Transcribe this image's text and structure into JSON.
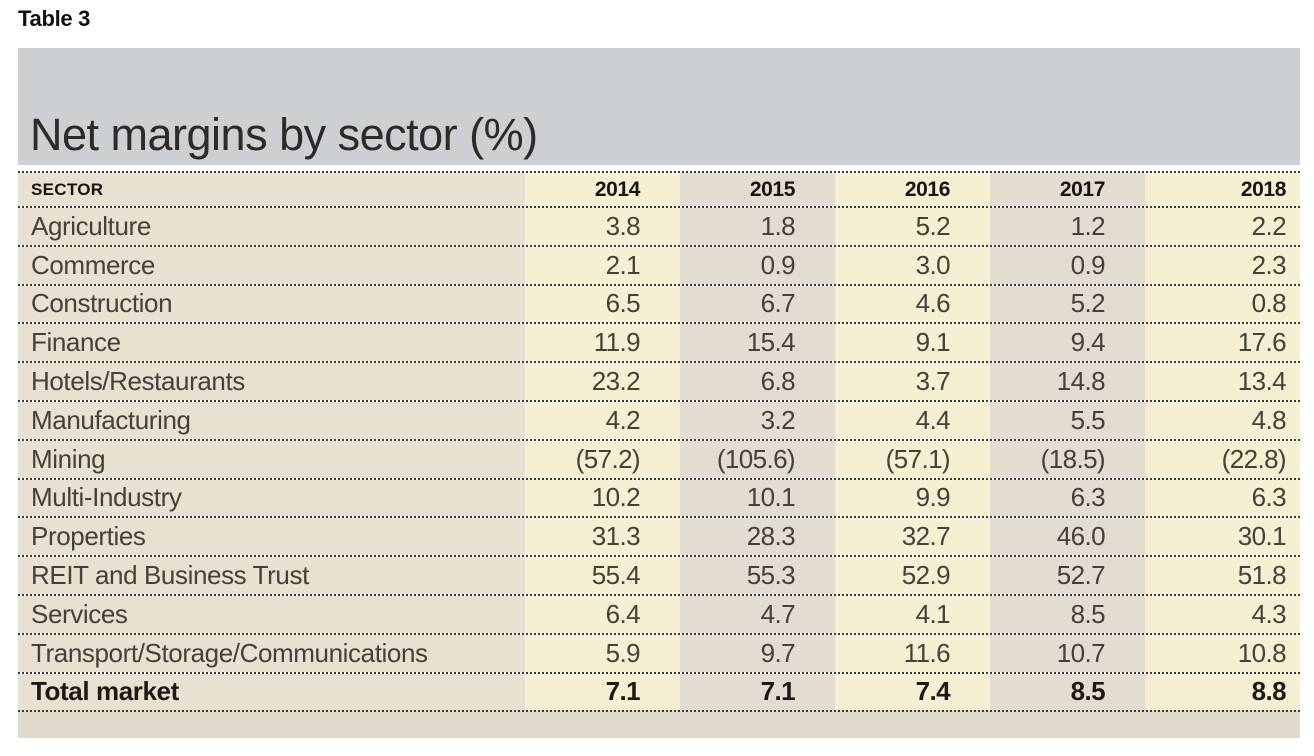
{
  "page": {
    "label": "Table 3"
  },
  "table": {
    "title": "Net margins by sector (%)",
    "columns": [
      "SECTOR",
      "2014",
      "2015",
      "2016",
      "2017",
      "2018"
    ],
    "rows": [
      {
        "sector": "Agriculture",
        "values": [
          "3.8",
          "1.8",
          "5.2",
          "1.2",
          "2.2"
        ]
      },
      {
        "sector": "Commerce",
        "values": [
          "2.1",
          "0.9",
          "3.0",
          "0.9",
          "2.3"
        ]
      },
      {
        "sector": "Construction",
        "values": [
          "6.5",
          "6.7",
          "4.6",
          "5.2",
          "0.8"
        ]
      },
      {
        "sector": "Finance",
        "values": [
          "11.9",
          "15.4",
          "9.1",
          "9.4",
          "17.6"
        ]
      },
      {
        "sector": "Hotels/Restaurants",
        "values": [
          "23.2",
          "6.8",
          "3.7",
          "14.8",
          "13.4"
        ]
      },
      {
        "sector": "Manufacturing",
        "values": [
          "4.2",
          "3.2",
          "4.4",
          "5.5",
          "4.8"
        ]
      },
      {
        "sector": "Mining",
        "values": [
          "(57.2)",
          "(105.6)",
          "(57.1)",
          "(18.5)",
          "(22.8)"
        ]
      },
      {
        "sector": "Multi-Industry",
        "values": [
          "10.2",
          "10.1",
          "9.9",
          "6.3",
          "6.3"
        ]
      },
      {
        "sector": "Properties",
        "values": [
          "31.3",
          "28.3",
          "32.7",
          "46.0",
          "30.1"
        ]
      },
      {
        "sector": "REIT and Business Trust",
        "values": [
          "55.4",
          "55.3",
          "52.9",
          "52.7",
          "51.8"
        ]
      },
      {
        "sector": "Services",
        "values": [
          "6.4",
          "4.7",
          "4.1",
          "8.5",
          "4.3"
        ]
      },
      {
        "sector": "Transport/Storage/Communications",
        "values": [
          "5.9",
          "9.7",
          "11.6",
          "10.7",
          "10.8"
        ]
      },
      {
        "sector": "Total market",
        "values": [
          "7.1",
          "7.1",
          "7.4",
          "8.5",
          "8.8"
        ]
      }
    ]
  },
  "chart_data": {
    "type": "table",
    "title": "Net margins by sector (%)",
    "table_label": "Table 3",
    "categories": [
      "2014",
      "2015",
      "2016",
      "2017",
      "2018"
    ],
    "unit": "percent",
    "negative_format": "parentheses",
    "series": [
      {
        "name": "Agriculture",
        "values": [
          3.8,
          1.8,
          5.2,
          1.2,
          2.2
        ]
      },
      {
        "name": "Commerce",
        "values": [
          2.1,
          0.9,
          3.0,
          0.9,
          2.3
        ]
      },
      {
        "name": "Construction",
        "values": [
          6.5,
          6.7,
          4.6,
          5.2,
          0.8
        ]
      },
      {
        "name": "Finance",
        "values": [
          11.9,
          15.4,
          9.1,
          9.4,
          17.6
        ]
      },
      {
        "name": "Hotels/Restaurants",
        "values": [
          23.2,
          6.8,
          3.7,
          14.8,
          13.4
        ]
      },
      {
        "name": "Manufacturing",
        "values": [
          4.2,
          3.2,
          4.4,
          5.5,
          4.8
        ]
      },
      {
        "name": "Mining",
        "values": [
          -57.2,
          -105.6,
          -57.1,
          -18.5,
          -22.8
        ]
      },
      {
        "name": "Multi-Industry",
        "values": [
          10.2,
          10.1,
          9.9,
          6.3,
          6.3
        ]
      },
      {
        "name": "Properties",
        "values": [
          31.3,
          28.3,
          32.7,
          46.0,
          30.1
        ]
      },
      {
        "name": "REIT and Business Trust",
        "values": [
          55.4,
          55.3,
          52.9,
          52.7,
          51.8
        ]
      },
      {
        "name": "Services",
        "values": [
          6.4,
          4.7,
          4.1,
          8.5,
          4.3
        ]
      },
      {
        "name": "Transport/Storage/Communications",
        "values": [
          5.9,
          9.7,
          11.6,
          10.7,
          10.8
        ]
      },
      {
        "name": "Total market",
        "values": [
          7.1,
          7.1,
          7.4,
          8.5,
          8.8
        ]
      }
    ]
  },
  "colors": {
    "banner": "#cdd0d3",
    "sectortan": "#e8e1d2",
    "yeartan": "#e3dcd0",
    "cream": "#f6efd1",
    "footer": "#e1dbce",
    "dot": "#3e3933"
  }
}
